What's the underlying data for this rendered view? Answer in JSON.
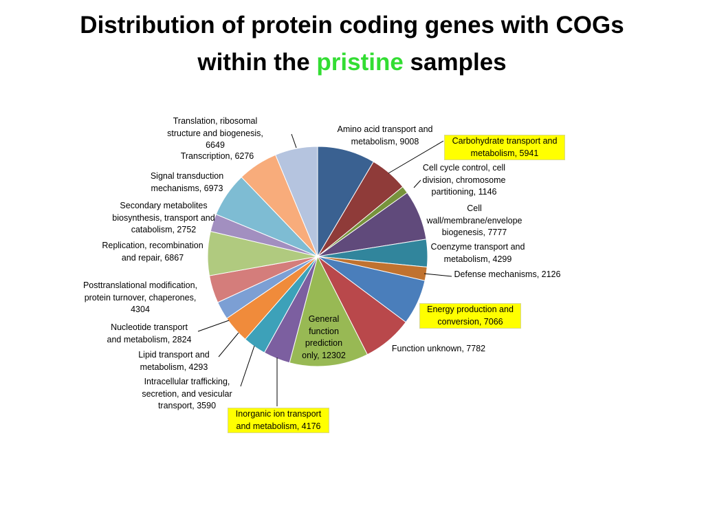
{
  "chart_data": {
    "type": "pie",
    "title_parts": [
      {
        "text": "Distribution of protein coding genes with COGs",
        "color": "#000000"
      },
      {
        "text": "within the ",
        "color": "#000000"
      },
      {
        "text": "pristine",
        "color": "#33dd33"
      },
      {
        "text": " samples",
        "color": "#000000"
      }
    ],
    "values": [
      9008,
      5941,
      1146,
      7777,
      4299,
      2126,
      7066,
      7782,
      12302,
      4176,
      3590,
      4293,
      2824,
      4304,
      6867,
      2752,
      6973,
      6276,
      6649
    ],
    "value_labels": [
      "Amino acid transport and metabolism, 9008",
      "Carbohydrate transport and metabolism, 5941",
      "Cell cycle control, cell division, chromosome partitioning, 1146",
      "Cell wall/membrane/envelope biogenesis, 7777",
      "Coenzyme transport and metabolism, 4299",
      "Defense mechanisms, 2126",
      "Energy production and conversion, 7066",
      "Function unknown, 7782",
      "General function prediction only, 12302",
      "Inorganic ion transport and metabolism, 4176",
      "Intracellular trafficking, secretion, and vesicular transport, 3590",
      "Lipid transport and metabolism, 4293",
      "Nucleotide transport and metabolism, 2824",
      "Posttranslational modification, protein turnover, chaperones, 4304",
      "Replication, recombination and repair, 6867",
      "Secondary metabolites biosynthesis, transport and catabolism, 2752",
      "Signal transduction mechanisms, 6973",
      "Transcription, 6276",
      "Translation, ribosomal structure and biogenesis, 6649"
    ],
    "colors": [
      "#3a6191",
      "#8f3b39",
      "#77933c",
      "#604a7b",
      "#31859c",
      "#c0722f",
      "#4a7ebb",
      "#b9484b",
      "#98b954",
      "#7c5fa0",
      "#3da1b9",
      "#f08b3b",
      "#7c9fd4",
      "#d47d7b",
      "#b0ca7f",
      "#a28fc0",
      "#7ebcd3",
      "#f8ac7b",
      "#b5c4df"
    ],
    "highlighted": [
      false,
      true,
      false,
      false,
      false,
      false,
      true,
      false,
      false,
      true,
      false,
      false,
      false,
      false,
      false,
      false,
      false,
      false,
      false
    ],
    "highlight_color": "#ffff00"
  }
}
